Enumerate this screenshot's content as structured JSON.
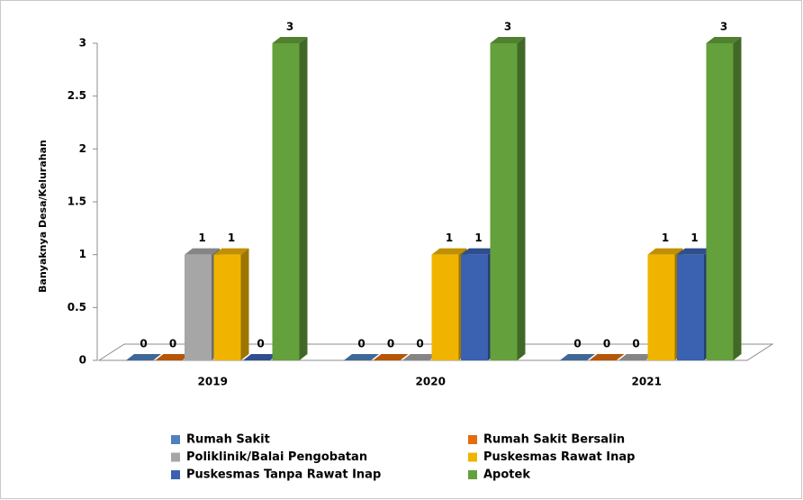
{
  "chart_data": {
    "type": "bar3d",
    "y_label": "Banyaknya Desa/Kelurahan",
    "categories": [
      "2019",
      "2020",
      "2021"
    ],
    "series": [
      {
        "name": "Rumah Sakit",
        "color": "#4f81bd",
        "values": [
          0,
          0,
          0
        ]
      },
      {
        "name": "Rumah Sakit Bersalin",
        "color": "#e46c0a",
        "values": [
          0,
          0,
          0
        ]
      },
      {
        "name": "Poliklinik/Balai Pengobatan",
        "color": "#a6a6a6",
        "values": [
          1,
          0,
          0
        ]
      },
      {
        "name": "Puskesmas Rawat Inap",
        "color": "#f0b400",
        "values": [
          1,
          1,
          1
        ]
      },
      {
        "name": "Puskesmas Tanpa Rawat Inap",
        "color": "#3a62b0",
        "values": [
          0,
          1,
          1
        ]
      },
      {
        "name": "Apotek",
        "color": "#64a03c",
        "values": [
          3,
          3,
          3
        ]
      }
    ],
    "ylim": [
      0,
      3
    ],
    "yticks": [
      0,
      0.5,
      1,
      1.5,
      2,
      2.5,
      3
    ],
    "legend": "bottom"
  }
}
